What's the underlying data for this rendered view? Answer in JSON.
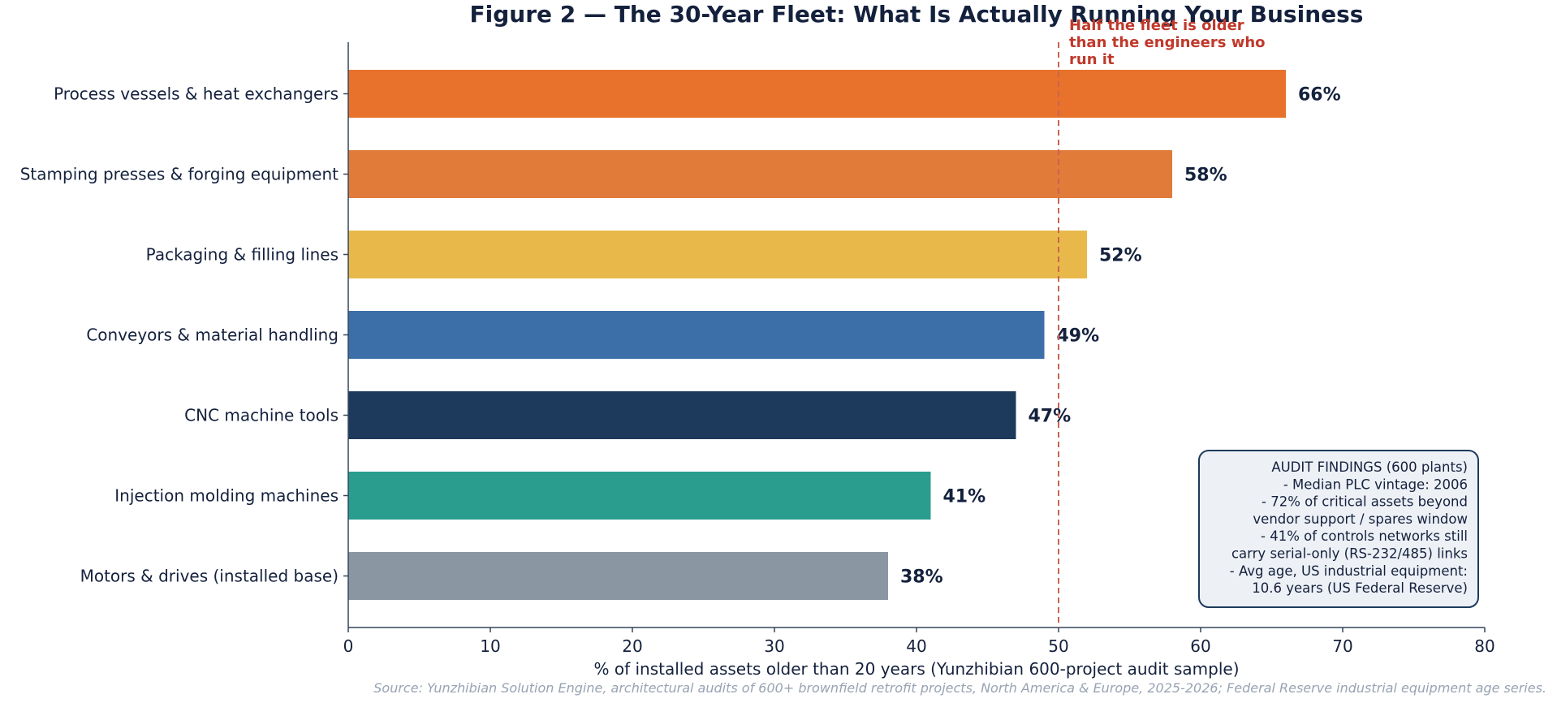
{
  "chart_data": {
    "type": "bar",
    "orientation": "horizontal",
    "title": "Figure 2 — The 30-Year Fleet: What Is Actually Running Your Business",
    "xlabel": "% of installed assets older than 20 years (Yunzhibian 600-project audit sample)",
    "ylabel": "",
    "xlim": [
      0,
      80
    ],
    "xticks": [
      0,
      10,
      20,
      30,
      40,
      50,
      60,
      70,
      80
    ],
    "grid": false,
    "categories": [
      "Process vessels & heat exchangers",
      "Stamping presses & forging equipment",
      "Packaging & filling lines",
      "Conveyors & material handling",
      "CNC machine tools",
      "Injection molding machines",
      "Motors & drives (installed base)"
    ],
    "values": [
      66,
      58,
      52,
      49,
      47,
      41,
      38
    ],
    "data_labels": [
      "66%",
      "58%",
      "52%",
      "49%",
      "47%",
      "41%",
      "38%"
    ],
    "colors": [
      "#e8722b",
      "#e07b3a",
      "#e8b94a",
      "#3c6ea8",
      "#1d3a5c",
      "#2a9d8f",
      "#8a97a3"
    ],
    "reference_line": {
      "x": 50,
      "color": "#c86450",
      "style": "dashed",
      "annotation": [
        "Half the fleet is older",
        "than the engineers who",
        "run it"
      ]
    },
    "info_box": {
      "lines": [
        "AUDIT FINDINGS (600 plants)",
        "- Median PLC vintage: 2006",
        "- 72% of critical assets beyond",
        "vendor support / spares window",
        "- 41% of controls networks still",
        "carry serial-only (RS-232/485) links",
        "- Avg age, US industrial equipment:",
        "10.6 years (US Federal Reserve)"
      ],
      "background": "#edf1f6",
      "border": "#1d3a5c"
    },
    "source": "Source: Yunzhibian Solution Engine, architectural audits of 600+ brownfield retrofit projects, North America & Europe, 2025-2026; Federal Reserve industrial equipment age series."
  }
}
